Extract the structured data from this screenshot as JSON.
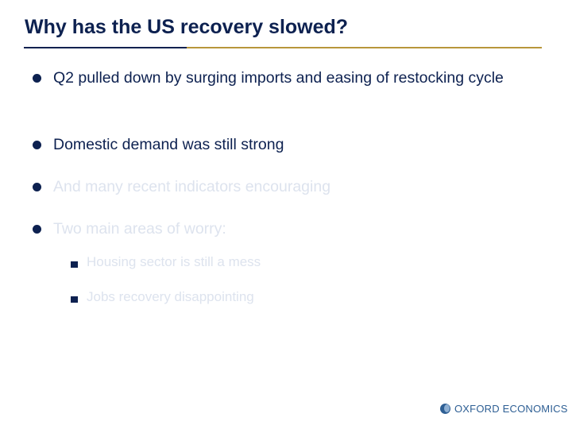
{
  "slide": {
    "title": "Why has the US recovery slowed?",
    "bullets": [
      {
        "text": "Q2 pulled down by surging imports and easing of restocking cycle"
      },
      {
        "text": "Domestic demand was still strong"
      },
      {
        "text": "And many recent indicators encouraging"
      },
      {
        "text": "Two main areas of worry:"
      }
    ],
    "sub_bullets": [
      {
        "text": "Housing sector is still a mess"
      },
      {
        "text": "Jobs recovery disappointing"
      }
    ],
    "logo_text": "OXFORD ECONOMICS"
  },
  "colors": {
    "title": "#0d2150",
    "title_rule_navy": "#0d2150",
    "title_rule_gold": "#b8963a",
    "active_text": "#0d2150",
    "faded_text": "#dde3ee",
    "logo": "#2e5f94"
  },
  "icons": {
    "bullet": "filled-circle-bullet",
    "sub_bullet": "filled-square-bullet",
    "logo": "globe-icon"
  }
}
